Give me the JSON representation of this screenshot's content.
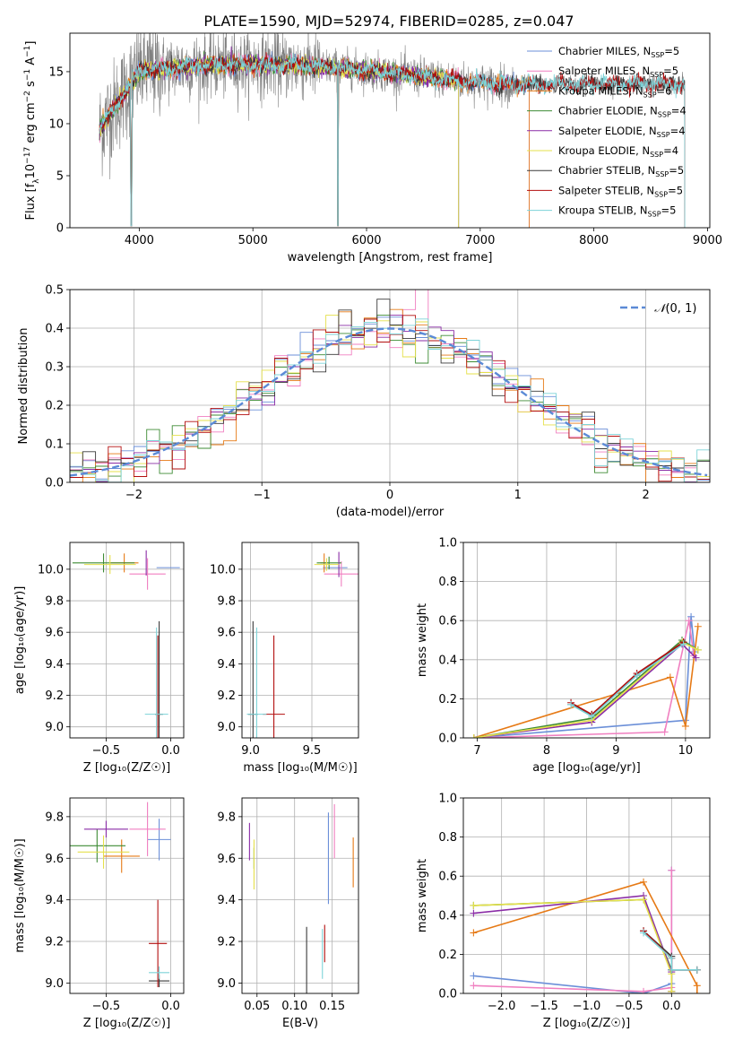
{
  "figure_title": "PLATE=1590, MJD=52974, FIBERID=0285, z=0.047",
  "colors": {
    "series": [
      "#6b8fd8",
      "#f07fc0",
      "#e67a16",
      "#3d8b34",
      "#8a2ca6",
      "#e5e04b",
      "#3a3a3a",
      "#b30f0f",
      "#7dd3d8"
    ],
    "gauss": "#5b8ad6",
    "grid": "#b0b0b0",
    "axes": "#000000"
  },
  "legend_labels": {
    "prefixes": [
      "Chabrier MILES, N",
      "Salpeter MILES, N",
      "Kroupa MILES, N",
      "Chabrier ELODIE, N",
      "Salpeter ELODIE, N",
      "Kroupa ELODIE, N",
      "Chabrier STELIB, N",
      "Salpeter STELIB, N",
      "Kroupa STELIB, N"
    ],
    "subscript": "SSP",
    "suffixes": [
      "=5",
      "=5",
      "=6",
      "=4",
      "=4",
      "=4",
      "=5",
      "=5",
      "=5"
    ]
  },
  "chart_data": [
    {
      "id": "spectrum",
      "type": "line",
      "ylabel_main": "Flux [f",
      "ylabel_sub": "λ",
      "ylabel_rest1": "10",
      "ylabel_sup1": "−17",
      "ylabel_rest2": " erg cm",
      "ylabel_sup2": "−2",
      "ylabel_rest3": " s",
      "ylabel_sup3": "−1",
      "ylabel_rest4": " A",
      "ylabel_sup4": "−1",
      "ylabel_end": "]",
      "xlabel": "wavelength [Angstrom, rest frame]",
      "xlim": [
        3390,
        9020
      ],
      "ylim": [
        0,
        18.7
      ],
      "xticks": [
        4000,
        5000,
        6000,
        7000,
        8000,
        9000
      ],
      "yticks": [
        0,
        5,
        10,
        15
      ],
      "data_range": [
        3650,
        8800
      ],
      "models_end": [
        7430,
        7430,
        7430,
        6810,
        6810,
        6810,
        8800,
        8800,
        8800
      ],
      "legend_position": "upper right"
    },
    {
      "id": "residuals",
      "type": "histogram",
      "xlabel": "(data-model)/error",
      "ylabel": "Normed distribution",
      "xlim": [
        -2.5,
        2.5
      ],
      "ylim": [
        0,
        0.5
      ],
      "xticks": [
        -2,
        -1,
        0,
        1,
        2
      ],
      "yticks": [
        0,
        0.1,
        0.2,
        0.3,
        0.4,
        0.5
      ],
      "gauss_label_pre": "𝒩",
      "gauss_label_post": "(0, 1)",
      "legend_position": "upper right",
      "bin_width": 0.1
    },
    {
      "id": "age_vs_Z",
      "type": "scatter",
      "xlabel": "Z [log₁₀(Z/Z☉)]",
      "ylabel": "age  [log₁₀(age/yr)]",
      "xlim": [
        -0.78,
        0.1
      ],
      "ylim": [
        8.93,
        10.17
      ],
      "xticks": [
        -0.5,
        0.0
      ],
      "yticks": [
        9.0,
        9.2,
        9.4,
        9.6,
        9.8,
        10.0
      ],
      "points": [
        {
          "c": 0,
          "x": -0.02,
          "y": 10.01,
          "xe": 0.09,
          "ye": 0.0
        },
        {
          "c": 1,
          "x": -0.18,
          "y": 9.97,
          "xe": 0.14,
          "ye": 0.1
        },
        {
          "c": 2,
          "x": -0.36,
          "y": 10.04,
          "xe": 0.11,
          "ye": 0.06
        },
        {
          "c": 3,
          "x": -0.52,
          "y": 10.04,
          "xe": 0.24,
          "ye": 0.06
        },
        {
          "c": 4,
          "x": -0.19,
          "y": 10.04,
          "xe": 0.0,
          "ye": 0.08
        },
        {
          "c": 5,
          "x": -0.47,
          "y": 10.03,
          "xe": 0.2,
          "ye": 0.06
        },
        {
          "c": 6,
          "x": -0.09,
          "y": 9.08,
          "xe": 0.03,
          "ye": 0.59
        },
        {
          "c": 7,
          "x": -0.1,
          "y": 9.08,
          "xe": 0.02,
          "ye": 0.5
        },
        {
          "c": 8,
          "x": -0.11,
          "y": 9.08,
          "xe": 0.09,
          "ye": 0.55
        }
      ]
    },
    {
      "id": "age_vs_mass",
      "type": "scatter",
      "xlabel": "mass [log₁₀(M/M☉)]",
      "xlim": [
        8.93,
        9.88
      ],
      "ylim": [
        8.93,
        10.17
      ],
      "xticks": [
        9.0,
        9.5
      ],
      "yticks": [
        9.0,
        9.2,
        9.4,
        9.6,
        9.8,
        10.0
      ],
      "points": [
        {
          "c": 0,
          "x": 9.69,
          "y": 10.01,
          "xe": 0.1,
          "ye": 0.0
        },
        {
          "c": 1,
          "x": 9.74,
          "y": 9.97,
          "xe": 0.14,
          "ye": 0.08
        },
        {
          "c": 2,
          "x": 9.6,
          "y": 10.04,
          "xe": 0.03,
          "ye": 0.06
        },
        {
          "c": 3,
          "x": 9.64,
          "y": 10.04,
          "xe": 0.1,
          "ye": 0.04
        },
        {
          "c": 4,
          "x": 9.72,
          "y": 10.03,
          "xe": 0.0,
          "ye": 0.08
        },
        {
          "c": 5,
          "x": 9.62,
          "y": 10.03,
          "xe": 0.1,
          "ye": 0.04
        },
        {
          "c": 6,
          "x": 9.02,
          "y": 9.08,
          "xe": 0.04,
          "ye": 0.59
        },
        {
          "c": 7,
          "x": 9.19,
          "y": 9.08,
          "xe": 0.09,
          "ye": 0.5
        },
        {
          "c": 8,
          "x": 9.05,
          "y": 9.08,
          "xe": 0.08,
          "ye": 0.55
        }
      ]
    },
    {
      "id": "weight_vs_age",
      "type": "line",
      "xlabel": "age  [log₁₀(age/yr)]",
      "ylabel": "mass weight",
      "xlim": [
        6.8,
        10.35
      ],
      "ylim": [
        0,
        1.0
      ],
      "xticks": [
        7,
        8,
        9,
        10
      ],
      "yticks": [
        0,
        0.2,
        0.4,
        0.6,
        0.8,
        1.0
      ],
      "series": [
        {
          "c": 0,
          "x": [
            6.95,
            10.0,
            10.08,
            10.13
          ],
          "y": [
            0.0,
            0.09,
            0.62,
            0.44
          ]
        },
        {
          "c": 1,
          "x": [
            6.95,
            9.7,
            10.05,
            10.12
          ],
          "y": [
            0.0,
            0.03,
            0.6,
            0.42
          ]
        },
        {
          "c": 2,
          "x": [
            6.95,
            9.78,
            10.0,
            10.18
          ],
          "y": [
            0.0,
            0.31,
            0.06,
            0.57
          ]
        },
        {
          "c": 3,
          "x": [
            6.95,
            8.65,
            9.95,
            10.18
          ],
          "y": [
            0.0,
            0.1,
            0.5,
            0.45
          ]
        },
        {
          "c": 4,
          "x": [
            6.95,
            8.65,
            9.95,
            10.15
          ],
          "y": [
            0.0,
            0.08,
            0.48,
            0.41
          ]
        },
        {
          "c": 5,
          "x": [
            6.95,
            8.65,
            9.95,
            10.18
          ],
          "y": [
            0.0,
            0.09,
            0.49,
            0.45
          ]
        },
        {
          "c": 6,
          "x": [
            8.35,
            8.65,
            9.3,
            9.97
          ],
          "y": [
            0.17,
            0.12,
            0.32,
            0.49
          ]
        },
        {
          "c": 7,
          "x": [
            8.35,
            8.65,
            9.3,
            9.97
          ],
          "y": [
            0.18,
            0.12,
            0.33,
            0.49
          ]
        },
        {
          "c": 8,
          "x": [
            8.35,
            8.65,
            9.3,
            9.97
          ],
          "y": [
            0.17,
            0.11,
            0.32,
            0.48
          ]
        }
      ]
    },
    {
      "id": "mass_vs_Z",
      "type": "scatter",
      "xlabel": "Z [log₁₀(Z/Z☉)]",
      "ylabel": "mass [log₁₀(M/M☉)]",
      "xlim": [
        -0.78,
        0.1
      ],
      "ylim": [
        8.95,
        9.89
      ],
      "xticks": [
        -0.5,
        0.0
      ],
      "yticks": [
        9.0,
        9.2,
        9.4,
        9.6,
        9.8
      ],
      "points": [
        {
          "c": 0,
          "x": -0.09,
          "y": 9.69,
          "xe": 0.09,
          "ye": 0.1
        },
        {
          "c": 1,
          "x": -0.18,
          "y": 9.74,
          "xe": 0.14,
          "ye": 0.13
        },
        {
          "c": 2,
          "x": -0.38,
          "y": 9.61,
          "xe": 0.14,
          "ye": 0.08
        },
        {
          "c": 3,
          "x": -0.57,
          "y": 9.66,
          "xe": 0.22,
          "ye": 0.08
        },
        {
          "c": 4,
          "x": -0.5,
          "y": 9.74,
          "xe": 0.17,
          "ye": 0.04
        },
        {
          "c": 5,
          "x": -0.52,
          "y": 9.63,
          "xe": 0.2,
          "ye": 0.08
        },
        {
          "c": 6,
          "x": -0.09,
          "y": 9.01,
          "xe": 0.08,
          "ye": 0.03
        },
        {
          "c": 7,
          "x": -0.1,
          "y": 9.19,
          "xe": 0.07,
          "ye": 0.21
        },
        {
          "c": 8,
          "x": -0.09,
          "y": 9.05,
          "xe": 0.08,
          "ye": 0.03
        }
      ]
    },
    {
      "id": "mass_vs_EBV",
      "type": "scatter",
      "xlabel": "E(B-V)",
      "xlim": [
        0.03,
        0.185
      ],
      "ylim": [
        8.95,
        9.89
      ],
      "xticks": [
        0.05,
        0.1,
        0.15
      ],
      "yticks": [
        9.0,
        9.2,
        9.4,
        9.6,
        9.8
      ],
      "points": [
        {
          "c": 0,
          "x": 0.145,
          "y": 9.6,
          "xe": 0.0,
          "ye": 0.22
        },
        {
          "c": 1,
          "x": 0.153,
          "y": 9.73,
          "xe": 0.0,
          "ye": 0.13
        },
        {
          "c": 2,
          "x": 0.178,
          "y": 9.58,
          "xe": 0.0,
          "ye": 0.12
        },
        {
          "c": 3,
          "x": 0.046,
          "y": 9.6,
          "xe": 0.0,
          "ye": 0.05
        },
        {
          "c": 4,
          "x": 0.04,
          "y": 9.68,
          "xe": 0.0,
          "ye": 0.09
        },
        {
          "c": 5,
          "x": 0.046,
          "y": 9.57,
          "xe": 0.0,
          "ye": 0.12
        },
        {
          "c": 6,
          "x": 0.116,
          "y": 9.05,
          "xe": 0.0,
          "ye": 0.22
        },
        {
          "c": 7,
          "x": 0.14,
          "y": 9.19,
          "xe": 0.0,
          "ye": 0.09
        },
        {
          "c": 8,
          "x": 0.137,
          "y": 9.14,
          "xe": 0.0,
          "ye": 0.12
        }
      ]
    },
    {
      "id": "weight_vs_Z",
      "type": "line",
      "xlabel": "Z [log₁₀(Z/Z☉)]",
      "ylabel": "mass weight",
      "xlim": [
        -2.45,
        0.45
      ],
      "ylim": [
        0,
        1.0
      ],
      "xticks": [
        -2.0,
        -1.5,
        -1.0,
        -0.5,
        0.0
      ],
      "yticks": [
        0,
        0.2,
        0.4,
        0.6,
        0.8,
        1.0
      ],
      "series": [
        {
          "c": 0,
          "x": [
            -2.33,
            -0.33,
            0.0,
            0.0
          ],
          "y": [
            0.09,
            0.0,
            0.05,
            0.63
          ]
        },
        {
          "c": 1,
          "x": [
            -2.33,
            -0.33,
            0.0,
            0.0
          ],
          "y": [
            0.04,
            0.01,
            0.03,
            0.63
          ]
        },
        {
          "c": 2,
          "x": [
            -2.33,
            -0.33,
            0.3,
            0.3
          ],
          "y": [
            0.31,
            0.57,
            0.04,
            0.0
          ]
        },
        {
          "c": 3,
          "x": [
            -2.33,
            -0.33,
            0.0,
            0.0
          ],
          "y": [
            0.45,
            0.48,
            0.12,
            0.01
          ]
        },
        {
          "c": 4,
          "x": [
            -2.33,
            -0.33,
            0.0,
            0.0
          ],
          "y": [
            0.41,
            0.5,
            0.11,
            0.01
          ]
        },
        {
          "c": 5,
          "x": [
            -2.33,
            -0.33,
            0.0,
            0.0
          ],
          "y": [
            0.45,
            0.48,
            0.1,
            0.01
          ]
        },
        {
          "c": 6,
          "x": [
            -0.33,
            0.0,
            0.0,
            0.3
          ],
          "y": [
            0.32,
            0.19,
            0.12,
            0.12
          ]
        },
        {
          "c": 7,
          "x": [
            -0.33,
            0.0,
            0.0,
            0.3
          ],
          "y": [
            0.32,
            0.18,
            0.12,
            0.12
          ]
        },
        {
          "c": 8,
          "x": [
            -0.33,
            0.0,
            0.0,
            0.3
          ],
          "y": [
            0.31,
            0.18,
            0.12,
            0.12
          ]
        }
      ]
    }
  ]
}
